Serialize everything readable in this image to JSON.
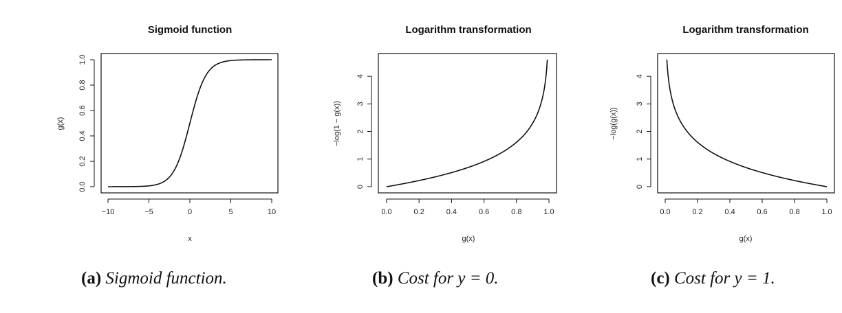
{
  "chart_data": [
    {
      "type": "line",
      "title": "Sigmoid function",
      "xlabel": "x",
      "ylabel": "g(x)",
      "xlim": [
        -10,
        10
      ],
      "ylim": [
        0,
        1
      ],
      "xticks": [
        -10,
        -5,
        0,
        5,
        10
      ],
      "xtick_labels": [
        "−10",
        "−5",
        "0",
        "5",
        "10"
      ],
      "yticks": [
        0,
        0.2,
        0.4,
        0.6,
        0.8,
        1.0
      ],
      "ytick_labels": [
        "0.0",
        "0.2",
        "0.4",
        "0.6",
        "0.8",
        "1.0"
      ],
      "function": "sigmoid",
      "series": [
        {
          "x": [
            -10,
            -5,
            -2,
            0,
            2,
            5,
            10
          ],
          "y": [
            0.0,
            0.007,
            0.119,
            0.5,
            0.881,
            0.993,
            1.0
          ]
        }
      ],
      "grid": false,
      "caption": {
        "label": "(a)",
        "text": "Sigmoid function."
      }
    },
    {
      "type": "line",
      "title": "Logarithm transformation",
      "xlabel": "g(x)",
      "ylabel": "−log(1 − g(x))",
      "xlim": [
        0,
        1
      ],
      "ylim": [
        0,
        4.6
      ],
      "xticks": [
        0,
        0.2,
        0.4,
        0.6,
        0.8,
        1.0
      ],
      "xtick_labels": [
        "0.0",
        "0.2",
        "0.4",
        "0.6",
        "0.8",
        "1.0"
      ],
      "yticks": [
        0,
        1,
        2,
        3,
        4
      ],
      "ytick_labels": [
        "0",
        "1",
        "2",
        "3",
        "4"
      ],
      "function": "neglog1m",
      "series": [
        {
          "x": [
            0.0,
            0.2,
            0.4,
            0.6,
            0.8,
            0.9,
            0.99
          ],
          "y": [
            0.0,
            0.22,
            0.51,
            0.92,
            1.61,
            2.3,
            4.6
          ]
        }
      ],
      "grid": false,
      "caption": {
        "label": "(b)",
        "text": "Cost for",
        "math": "y = 0."
      }
    },
    {
      "type": "line",
      "title": "Logarithm transformation",
      "xlabel": "g(x)",
      "ylabel": "−log(g(x))",
      "xlim": [
        0,
        1
      ],
      "ylim": [
        0,
        4.6
      ],
      "xticks": [
        0,
        0.2,
        0.4,
        0.6,
        0.8,
        1.0
      ],
      "xtick_labels": [
        "0.0",
        "0.2",
        "0.4",
        "0.6",
        "0.8",
        "1.0"
      ],
      "yticks": [
        0,
        1,
        2,
        3,
        4
      ],
      "ytick_labels": [
        "0",
        "1",
        "2",
        "3",
        "4"
      ],
      "function": "neglog",
      "series": [
        {
          "x": [
            0.01,
            0.1,
            0.2,
            0.4,
            0.6,
            0.8,
            1.0
          ],
          "y": [
            4.6,
            2.3,
            1.61,
            0.92,
            0.51,
            0.22,
            0.0
          ]
        }
      ],
      "grid": false,
      "caption": {
        "label": "(c)",
        "text": "Cost for",
        "math": "y = 1."
      }
    }
  ]
}
